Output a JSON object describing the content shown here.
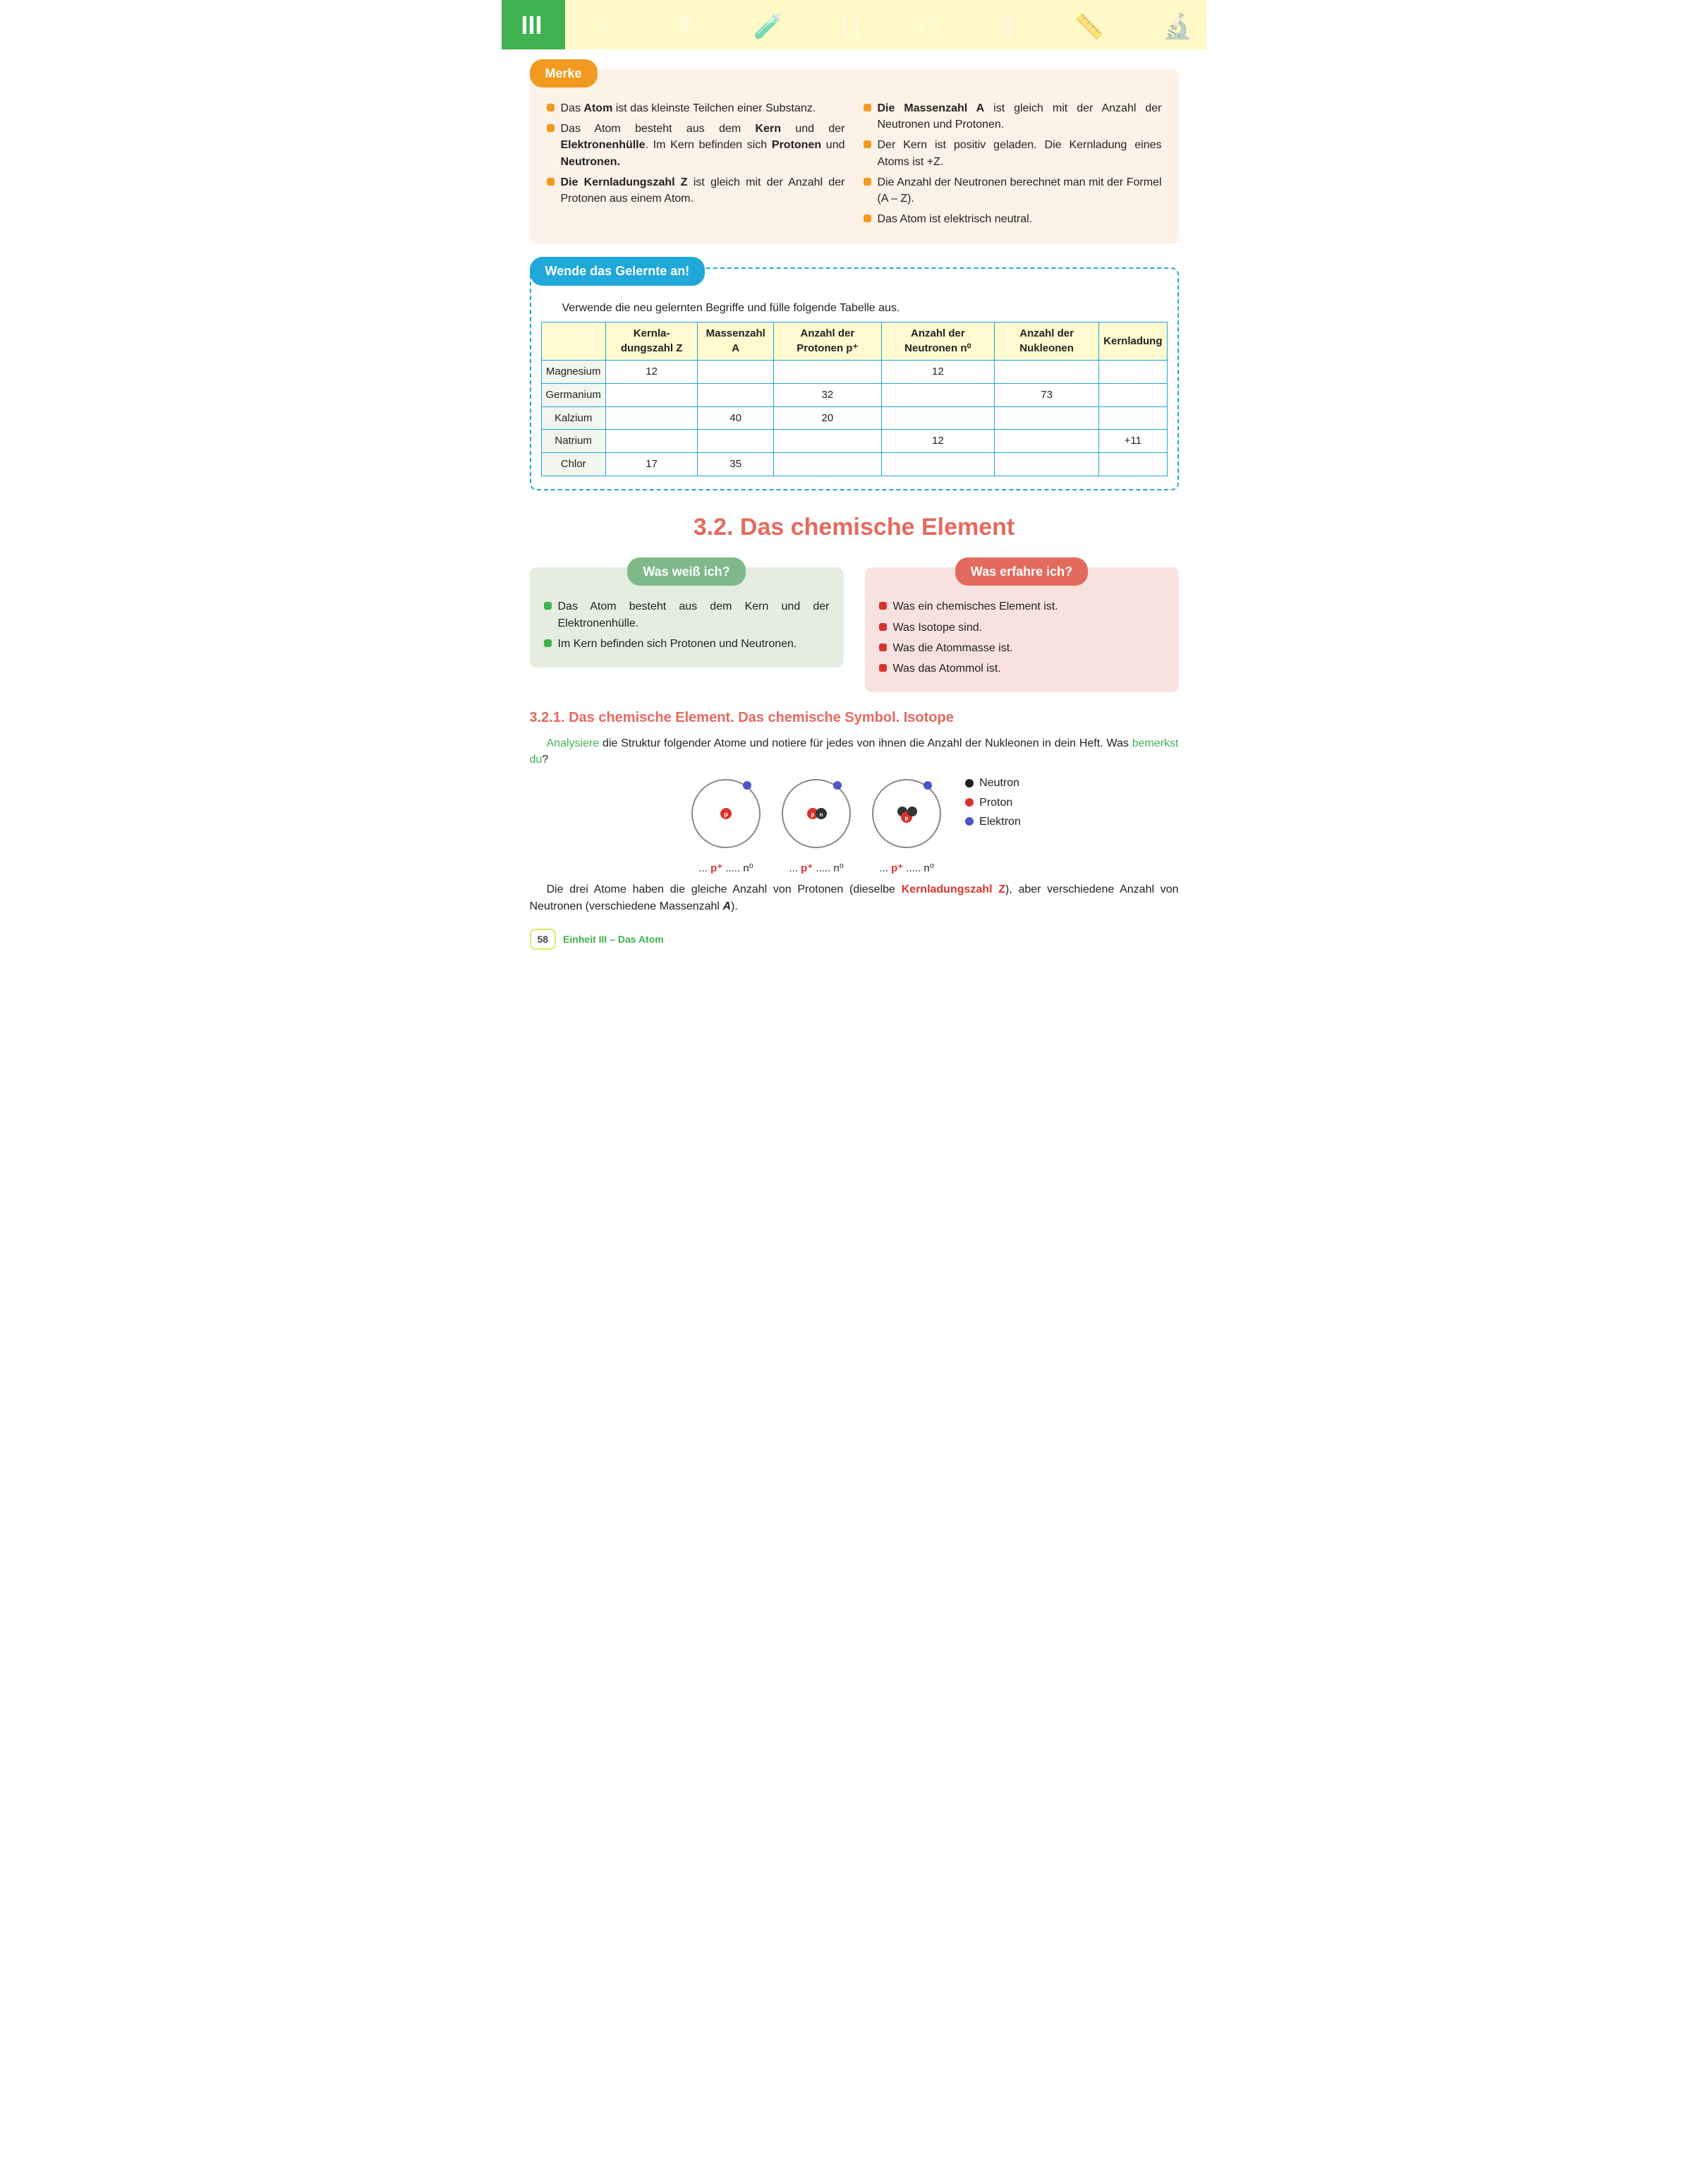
{
  "header": {
    "roman": "III"
  },
  "merke": {
    "title": "Merke",
    "left": [
      "Das <b>Atom</b> ist das kleinste Teilchen einer Substanz.",
      "Das Atom besteht aus dem <b>Kern</b> und der <b>Elektronenhülle</b>. Im Kern befinden sich <b>Protonen</b> und <b>Neutronen.</b>",
      "<b>Die Kernladungszahl Z</b> ist gleich mit der Anzahl der Protonen aus einem Atom."
    ],
    "right": [
      "<b>Die Massenzahl A</b> ist gleich mit der Anzahl der Neutronen und Protonen.",
      "Der Kern ist positiv geladen. Die Kernladung eines Atoms ist +Z.",
      "Die Anzahl der Neutronen berechnet man mit der Formel (A – Z).",
      "Das Atom ist elektrisch neutral."
    ]
  },
  "apply": {
    "title": "Wende das Gelernte an!",
    "intro": "Verwende die neu gelernten Begriffe und fülle folgende Tabelle aus.",
    "columns": [
      "",
      "Kernla­dungszahl Z",
      "Massenzahl A",
      "Anzahl der Protonen p⁺",
      "Anzahl der Neutronen n⁰",
      "Anzahl der Nukleonen",
      "Kernladung"
    ],
    "rows": [
      [
        "Magnesium",
        "12",
        "",
        "",
        "12",
        "",
        ""
      ],
      [
        "Germanium",
        "",
        "",
        "32",
        "",
        "73",
        ""
      ],
      [
        "Kalzium",
        "",
        "40",
        "20",
        "",
        "",
        ""
      ],
      [
        "Natrium",
        "",
        "",
        "",
        "12",
        "",
        "+11"
      ],
      [
        "Chlor",
        "17",
        "35",
        "",
        "",
        "",
        ""
      ]
    ]
  },
  "section": {
    "title": "3.2. Das chemische Element",
    "know": {
      "title": "Was weiß ich?",
      "items": [
        "Das Atom besteht aus dem Kern und der Elektronenhülle.",
        "Im Kern befinden sich Protonen und Neutronen."
      ]
    },
    "learn": {
      "title": "Was erfahre ich?",
      "items": [
        "Was ein chemisches Element ist.",
        "Was Isotope sind.",
        "Was die Atommasse ist.",
        "Was das Atommol ist."
      ]
    }
  },
  "subsection": {
    "title": "3.2.1. Das chemische Element. Das chemische Symbol. Isotope",
    "para1_a": "Analysiere",
    "para1_b": " die Struktur folgender Atome und notiere für jedes von ihnen die Anzahl der Nukleonen in dein Heft. Was ",
    "para1_c": "bemerkst du",
    "para1_d": "?",
    "legend": {
      "neutron": "Neutron",
      "proton": "Proton",
      "elektron": "Elektron",
      "neutron_color": "#222",
      "proton_color": "#d9332e",
      "elektron_color": "#4a57c4"
    },
    "caption": "... <span class='p'>p⁺</span> ..... n⁰",
    "para2": "Die drei Atome haben die gleiche Anzahl von Protonen (dieselbe <span class='red-bold'>Kernladungszahl Z</span>), aber verschiedene Anzahl von Neutronen (verschiedene Massenzahl <b><i>A</i></b>)."
  },
  "footer": {
    "page": "58",
    "unit": "Einheit III – Das Atom"
  },
  "colors": {
    "green": "#3eb34f",
    "orange": "#f29a1f",
    "blue": "#1fa8d8",
    "red": "#e46a5e",
    "cream": "#fff9c8",
    "merke_bg": "#fdf2e7"
  }
}
